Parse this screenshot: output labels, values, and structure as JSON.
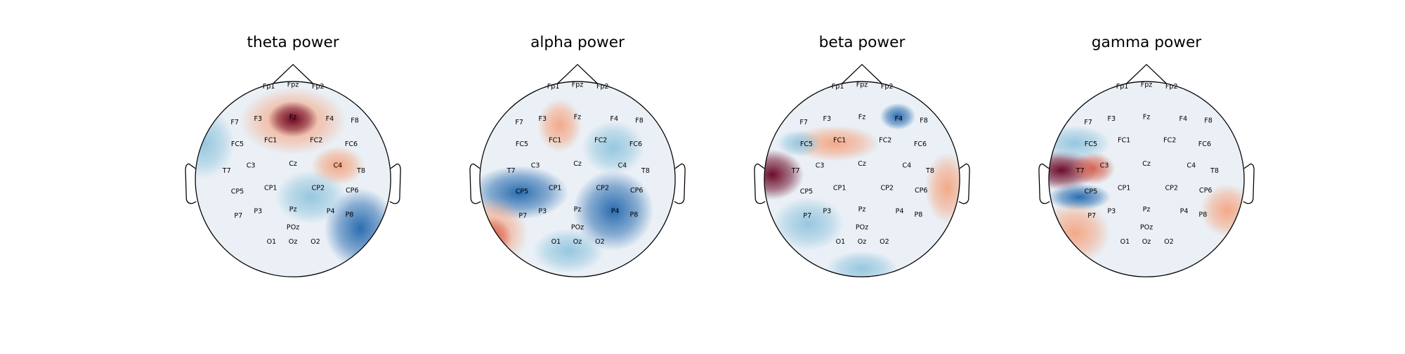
{
  "panels": [
    {
      "title": "theta power"
    },
    {
      "title": "alpha power"
    },
    {
      "title": "beta power"
    },
    {
      "title": "gamma power"
    }
  ],
  "electrodes": [
    "Fp1",
    "Fpz",
    "Fp2",
    "F7",
    "F3",
    "Fz",
    "F4",
    "F8",
    "FC5",
    "FC1",
    "FC2",
    "FC6",
    "T7",
    "C3",
    "Cz",
    "C4",
    "T8",
    "CP5",
    "CP1",
    "CP2",
    "CP6",
    "P7",
    "P3",
    "Pz",
    "P4",
    "P8",
    "POz",
    "O1",
    "Oz",
    "O2"
  ]
}
